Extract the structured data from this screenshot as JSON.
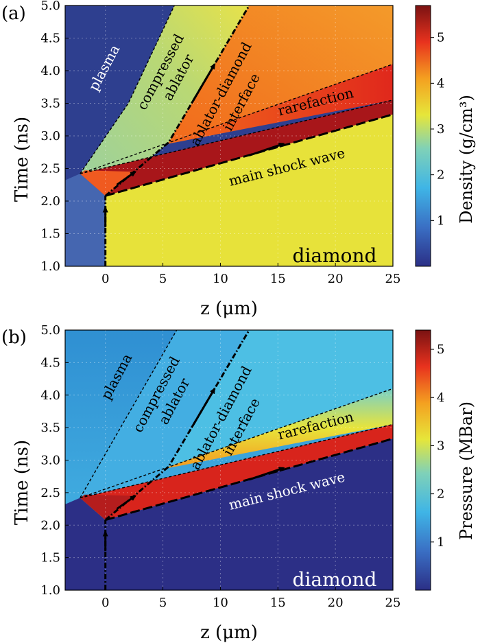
{
  "figure": {
    "panels": [
      {
        "panel_label": "(a)",
        "ylabel": "Time (ns)",
        "xlabel": "z (μm)",
        "colorbar_label": "Density (g/cm³)",
        "colorbar_ticks": [
          "1",
          "2",
          "3",
          "4",
          "5"
        ],
        "annotations": {
          "plasma": "plasma",
          "compressed_line1": "compressed",
          "compressed_line2": "ablator",
          "interface_line1": "ablator-diamond",
          "interface_line2": "interface",
          "rarefaction": "rarefaction",
          "shock": "main shock wave",
          "diamond": "diamond"
        }
      },
      {
        "panel_label": "(b)",
        "ylabel": "Time (ns)",
        "xlabel": "z (μm)",
        "colorbar_label": "Pressure (MBar)",
        "colorbar_ticks": [
          "1",
          "2",
          "3",
          "4",
          "5"
        ],
        "annotations": {
          "plasma": "plasma",
          "compressed_line1": "compressed",
          "compressed_line2": "ablator",
          "interface_line1": "ablator-diamond",
          "interface_line2": "interface",
          "rarefaction": "rarefaction",
          "shock": "main shock wave",
          "diamond": "diamond"
        }
      }
    ]
  },
  "chart_data": [
    {
      "type": "heatmap",
      "quantity": "density",
      "xlabel": "z (μm)",
      "ylabel": "Time (ns)",
      "colorbar_label": "Density (g/cm³)",
      "xlim": [
        -3.5,
        25
      ],
      "ylim": [
        1.0,
        5.0
      ],
      "xticks": [
        0,
        5,
        10,
        15,
        20,
        25
      ],
      "yticks": [
        1.0,
        1.5,
        2.0,
        2.5,
        3.0,
        3.5,
        4.0,
        4.5,
        5.0
      ],
      "colorbar_range": [
        0,
        5.7
      ],
      "colorbar_ticks": [
        1,
        2,
        3,
        4,
        5
      ],
      "grid": true,
      "region_values": {
        "plasma": 0.5,
        "cold_ablator": 1.0,
        "compressed_ablator": 2.8,
        "shocked_diamond": 5.4,
        "rarefaction": 4.4,
        "unshocked_diamond": 3.5
      },
      "curves": {
        "shock": [
          [
            0,
            2.08
          ],
          [
            25,
            3.33
          ]
        ],
        "shock_early": [
          [
            0,
            1.0
          ],
          [
            0,
            2.08
          ]
        ],
        "rarefaction": [
          [
            -2.2,
            2.42
          ],
          [
            25,
            3.55
          ]
        ],
        "rarefaction_upper": [
          [
            -2.2,
            2.42
          ],
          [
            25,
            4.1
          ]
        ],
        "interface": [
          [
            0,
            2.08
          ],
          [
            2.5,
            2.45
          ],
          [
            5.5,
            2.9
          ],
          [
            9.5,
            4.1
          ],
          [
            12.5,
            5.0
          ]
        ],
        "ablation_front": [
          [
            -2.2,
            2.42
          ],
          [
            2,
            3.5
          ],
          [
            6,
            5.0
          ]
        ]
      }
    },
    {
      "type": "heatmap",
      "quantity": "pressure",
      "xlabel": "z (μm)",
      "ylabel": "Time (ns)",
      "colorbar_label": "Pressure (MBar)",
      "xlim": [
        -3.5,
        25
      ],
      "ylim": [
        1.0,
        5.0
      ],
      "xticks": [
        0,
        5,
        10,
        15,
        20,
        25
      ],
      "yticks": [
        1.0,
        1.5,
        2.0,
        2.5,
        3.0,
        3.5,
        4.0,
        4.5,
        5.0
      ],
      "colorbar_range": [
        0,
        5.4
      ],
      "colorbar_ticks": [
        1,
        2,
        3,
        4,
        5
      ],
      "grid": true,
      "region_values": {
        "plasma": 2.0,
        "cold_ablator": 0.1,
        "compressed_ablator": 2.2,
        "shocked_diamond": 5.2,
        "rarefaction": 3.2,
        "unshocked_diamond": 0.1
      },
      "curves": {
        "shock": [
          [
            0,
            2.08
          ],
          [
            25,
            3.33
          ]
        ],
        "shock_early": [
          [
            0,
            1.0
          ],
          [
            0,
            2.08
          ]
        ],
        "rarefaction": [
          [
            -2.2,
            2.42
          ],
          [
            25,
            3.55
          ]
        ],
        "rarefaction_upper": [
          [
            -2.2,
            2.42
          ],
          [
            25,
            4.1
          ]
        ],
        "interface": [
          [
            0,
            2.08
          ],
          [
            2.5,
            2.45
          ],
          [
            5.5,
            2.9
          ],
          [
            9.5,
            4.1
          ],
          [
            12.5,
            5.0
          ]
        ],
        "ablation_front": [
          [
            -2.2,
            2.42
          ],
          [
            6.2,
            5.0
          ]
        ]
      }
    }
  ]
}
